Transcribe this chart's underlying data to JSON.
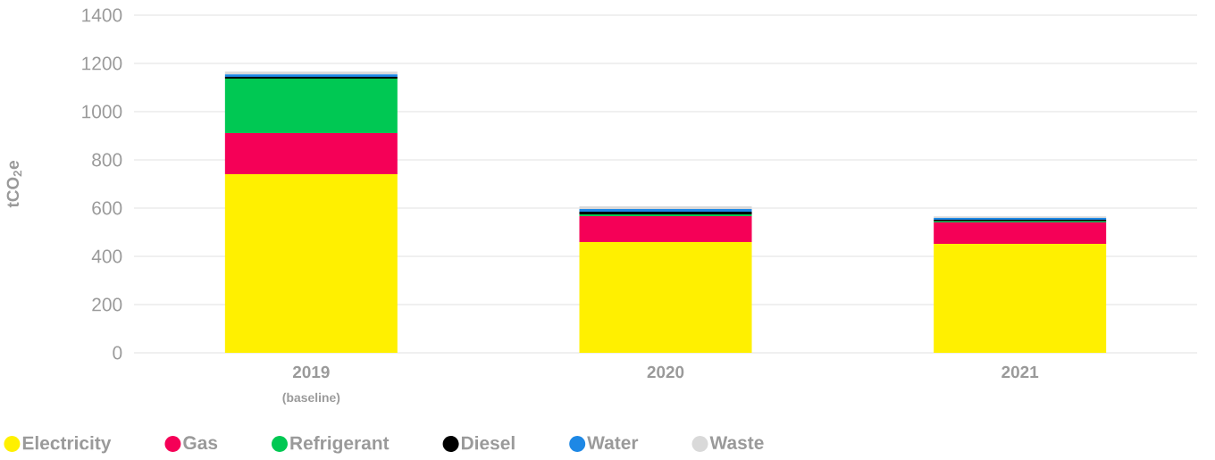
{
  "chart_data": {
    "type": "bar",
    "stacked": true,
    "ylabel": "tCO$_{2}$e",
    "categories": [
      "2019",
      "2020",
      "2021"
    ],
    "annotations": [
      "(baseline)"
    ],
    "series": [
      {
        "name": "Electricity",
        "color": "#fff000",
        "values": [
          741,
          459,
          452
        ]
      },
      {
        "name": "Gas",
        "color": "#f50057",
        "values": [
          170,
          108,
          89
        ]
      },
      {
        "name": "Refrigerant",
        "color": "#00c853",
        "values": [
          226,
          7,
          4
        ]
      },
      {
        "name": "Diesel",
        "color": "#000000",
        "values": [
          7,
          11,
          7
        ]
      },
      {
        "name": "Water",
        "color": "#1e88e5",
        "values": [
          11,
          11,
          7
        ]
      },
      {
        "name": "Waste",
        "color": "#d9d9d9",
        "values": [
          11,
          11,
          7
        ]
      }
    ],
    "ylim": [
      0,
      1400
    ],
    "yticks": [
      0,
      200,
      400,
      600,
      800,
      1000,
      1200,
      1400
    ],
    "grid": "y",
    "legend": "bottom"
  }
}
